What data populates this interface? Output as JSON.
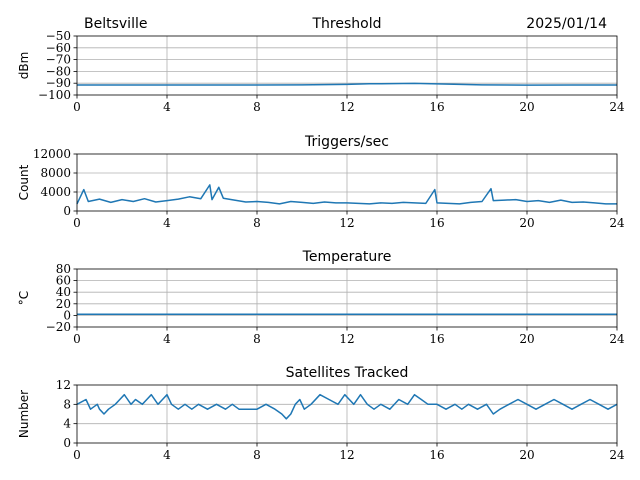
{
  "header": {
    "station": "Beltsville",
    "date": "2025/01/14"
  },
  "colors": {
    "series": "#1f77b4",
    "grid": "#b0b0b0"
  },
  "chart_data": [
    {
      "type": "line",
      "title": "Threshold",
      "ylabel": "dBm",
      "xlim": [
        0,
        24
      ],
      "ylim": [
        -100,
        -50
      ],
      "xticks": [
        0,
        4,
        8,
        12,
        16,
        20,
        24
      ],
      "xtick_labels": [
        "0",
        "4",
        "8",
        "12",
        "16",
        "20",
        "24"
      ],
      "yticks": [
        -100,
        -90,
        -80,
        -70,
        -60,
        -50
      ],
      "ytick_labels": [
        "−100",
        "−90",
        "−80",
        "−70",
        "−60",
        "−50"
      ],
      "grid": true,
      "x": [
        0,
        2,
        4,
        6,
        8,
        10,
        12,
        13,
        14,
        15,
        16,
        17,
        18,
        20,
        22,
        24
      ],
      "y": [
        -91.5,
        -91.5,
        -91.5,
        -91.5,
        -91.5,
        -91.4,
        -91.0,
        -90.5,
        -90.3,
        -90.2,
        -90.6,
        -91.0,
        -91.4,
        -91.6,
        -91.5,
        -91.5
      ]
    },
    {
      "type": "line",
      "title": "Triggers/sec",
      "ylabel": "Count",
      "xlim": [
        0,
        24
      ],
      "ylim": [
        0,
        12000
      ],
      "xticks": [
        0,
        4,
        8,
        12,
        16,
        20,
        24
      ],
      "xtick_labels": [
        "0",
        "4",
        "8",
        "12",
        "16",
        "20",
        "24"
      ],
      "yticks": [
        0,
        4000,
        8000,
        12000
      ],
      "ytick_labels": [
        "0",
        "4000",
        "8000",
        "12000"
      ],
      "grid": true,
      "x": [
        0,
        0.3,
        0.5,
        1,
        1.5,
        2,
        2.5,
        3,
        3.5,
        4,
        4.5,
        5,
        5.5,
        5.9,
        6,
        6.3,
        6.5,
        7,
        7.5,
        8,
        8.5,
        9,
        9.5,
        10,
        10.5,
        11,
        11.5,
        12,
        12.5,
        13,
        13.5,
        14,
        14.5,
        15,
        15.5,
        15.9,
        16,
        16.5,
        17,
        17.5,
        18,
        18.4,
        18.5,
        19,
        19.5,
        20,
        20.5,
        21,
        21.5,
        22,
        22.5,
        23,
        23.5,
        24
      ],
      "y": [
        1500,
        4500,
        2000,
        2500,
        1800,
        2400,
        2000,
        2600,
        1900,
        2200,
        2500,
        3000,
        2600,
        5500,
        2400,
        5000,
        2700,
        2300,
        1900,
        2000,
        1800,
        1500,
        2000,
        1800,
        1600,
        1900,
        1700,
        1700,
        1600,
        1500,
        1700,
        1600,
        1800,
        1700,
        1600,
        4500,
        1700,
        1600,
        1500,
        1800,
        2000,
        4700,
        2200,
        2300,
        2400,
        2000,
        2200,
        1800,
        2300,
        1800,
        1900,
        1700,
        1500,
        1500
      ]
    },
    {
      "type": "line",
      "title": "Temperature",
      "ylabel": "°C",
      "xlim": [
        0,
        24
      ],
      "ylim": [
        -20,
        80
      ],
      "xticks": [
        0,
        4,
        8,
        12,
        16,
        20,
        24
      ],
      "xtick_labels": [
        "0",
        "4",
        "8",
        "12",
        "16",
        "20",
        "24"
      ],
      "yticks": [
        -20,
        0,
        20,
        40,
        60,
        80
      ],
      "ytick_labels": [
        "−20",
        "0",
        "20",
        "40",
        "60",
        "80"
      ],
      "grid": true,
      "x": [
        0,
        24
      ],
      "y": [
        2,
        2
      ]
    },
    {
      "type": "line",
      "title": "Satellites Tracked",
      "ylabel": "Number",
      "xlim": [
        0,
        24
      ],
      "ylim": [
        0,
        12
      ],
      "xticks": [
        0,
        4,
        8,
        12,
        16,
        20,
        24
      ],
      "xtick_labels": [
        "0",
        "4",
        "8",
        "12",
        "16",
        "20",
        "24"
      ],
      "yticks": [
        0,
        4,
        8,
        12
      ],
      "ytick_labels": [
        "0",
        "4",
        "8",
        "12"
      ],
      "grid": true,
      "x": [
        0,
        0.4,
        0.6,
        0.9,
        1.0,
        1.2,
        1.4,
        1.7,
        1.9,
        2.1,
        2.4,
        2.6,
        2.9,
        3.1,
        3.3,
        3.6,
        3.8,
        4.0,
        4.2,
        4.5,
        4.8,
        5.1,
        5.4,
        5.8,
        6.2,
        6.6,
        6.9,
        7.2,
        7.6,
        8.0,
        8.4,
        8.8,
        9.1,
        9.3,
        9.5,
        9.7,
        9.9,
        10.1,
        10.4,
        10.8,
        11.2,
        11.6,
        11.9,
        12.1,
        12.3,
        12.6,
        12.9,
        13.2,
        13.5,
        13.9,
        14.3,
        14.7,
        15.0,
        15.3,
        15.6,
        16.0,
        16.4,
        16.8,
        17.1,
        17.4,
        17.8,
        18.2,
        18.5,
        18.8,
        19.2,
        19.6,
        20.0,
        20.4,
        20.8,
        21.2,
        21.6,
        22.0,
        22.4,
        22.8,
        23.2,
        23.6,
        24.0
      ],
      "y": [
        8,
        9,
        7,
        8,
        7,
        6,
        7,
        8,
        9,
        10,
        8,
        9,
        8,
        9,
        10,
        8,
        9,
        10,
        8,
        7,
        8,
        7,
        8,
        7,
        8,
        7,
        8,
        7,
        7,
        7,
        8,
        7,
        6,
        5,
        6,
        8,
        9,
        7,
        8,
        10,
        9,
        8,
        10,
        9,
        8,
        10,
        8,
        7,
        8,
        7,
        9,
        8,
        10,
        9,
        8,
        8,
        7,
        8,
        7,
        8,
        7,
        8,
        6,
        7,
        8,
        9,
        8,
        7,
        8,
        9,
        8,
        7,
        8,
        9,
        8,
        7,
        8
      ]
    }
  ]
}
